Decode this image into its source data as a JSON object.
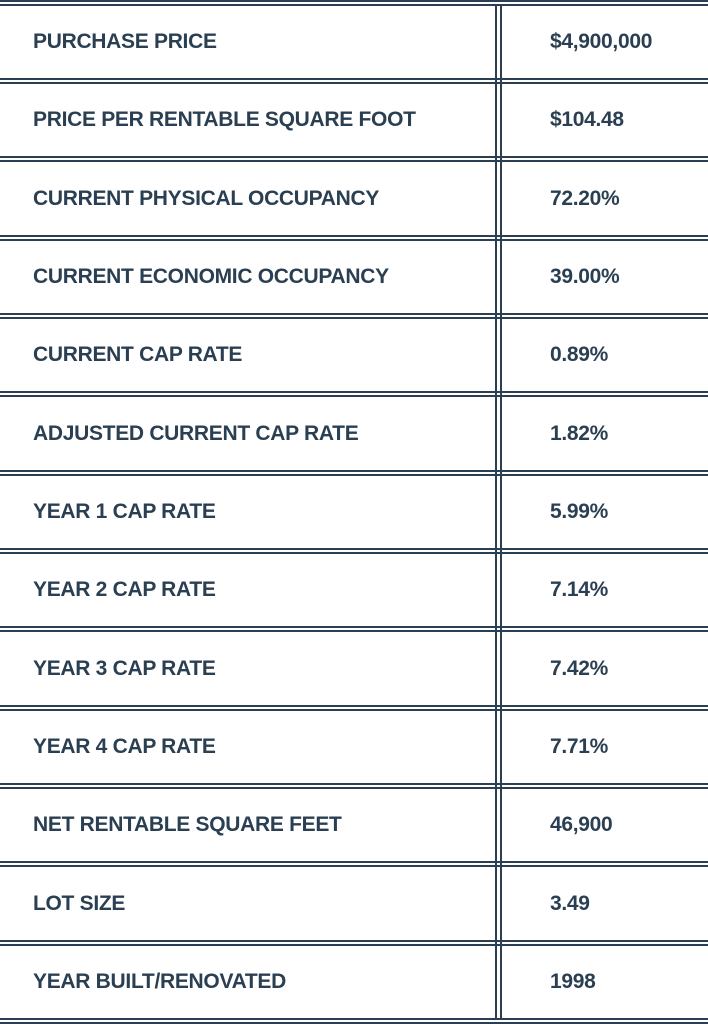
{
  "table": {
    "rows": [
      {
        "label": "PURCHASE PRICE",
        "value": "$4,900,000"
      },
      {
        "label": "PRICE PER RENTABLE SQUARE FOOT",
        "value": "$104.48"
      },
      {
        "label": "CURRENT PHYSICAL OCCUPANCY",
        "value": "72.20%"
      },
      {
        "label": "CURRENT ECONOMIC OCCUPANCY",
        "value": "39.00%"
      },
      {
        "label": "CURRENT CAP RATE",
        "value": "0.89%"
      },
      {
        "label": "ADJUSTED CURRENT CAP RATE",
        "value": "1.82%"
      },
      {
        "label": "YEAR 1 CAP RATE",
        "value": "5.99%"
      },
      {
        "label": "YEAR 2 CAP RATE",
        "value": "7.14%"
      },
      {
        "label": "YEAR 3 CAP RATE",
        "value": "7.42%"
      },
      {
        "label": "YEAR 4 CAP RATE",
        "value": "7.71%"
      },
      {
        "label": "NET RENTABLE SQUARE FEET",
        "value": "46,900"
      },
      {
        "label": "LOT SIZE",
        "value": "3.49"
      },
      {
        "label": "YEAR BUILT/RENOVATED",
        "value": "1998"
      }
    ],
    "colors": {
      "text": "#2b3f52",
      "rule": "#2b3f52",
      "background": "#ffffff"
    }
  }
}
